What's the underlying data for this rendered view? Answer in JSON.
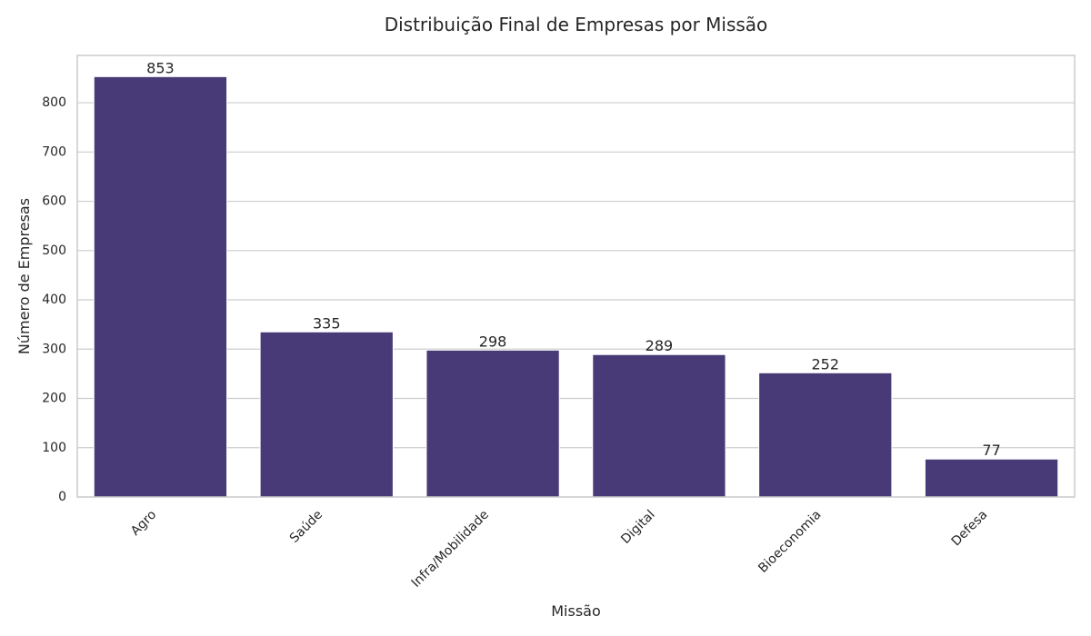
{
  "chart_data": {
    "type": "bar",
    "title": "Distribuição Final de Empresas por Missão",
    "xlabel": "Missão",
    "ylabel": "Número de Empresas",
    "categories": [
      "Agro",
      "Saúde",
      "Infra/Mobilidade",
      "Digital",
      "Bioeconomia",
      "Defesa"
    ],
    "values": [
      853,
      335,
      298,
      289,
      252,
      77
    ],
    "data_labels": [
      "853",
      "335",
      "298",
      "289",
      "252",
      "77"
    ],
    "ylim": [
      0,
      896
    ],
    "yticks": [
      0,
      100,
      200,
      300,
      400,
      500,
      600,
      700,
      800
    ],
    "ytick_labels": [
      "0",
      "100",
      "200",
      "300",
      "400",
      "500",
      "600",
      "700",
      "800"
    ],
    "grid": "horizontal",
    "legend": "none"
  },
  "colors": {
    "bar": "#483a76",
    "bar_edge": "#ffffff",
    "grid": "#cccccc",
    "axes_edge": "#cccccc",
    "text": "#262626",
    "background": "#ffffff"
  }
}
